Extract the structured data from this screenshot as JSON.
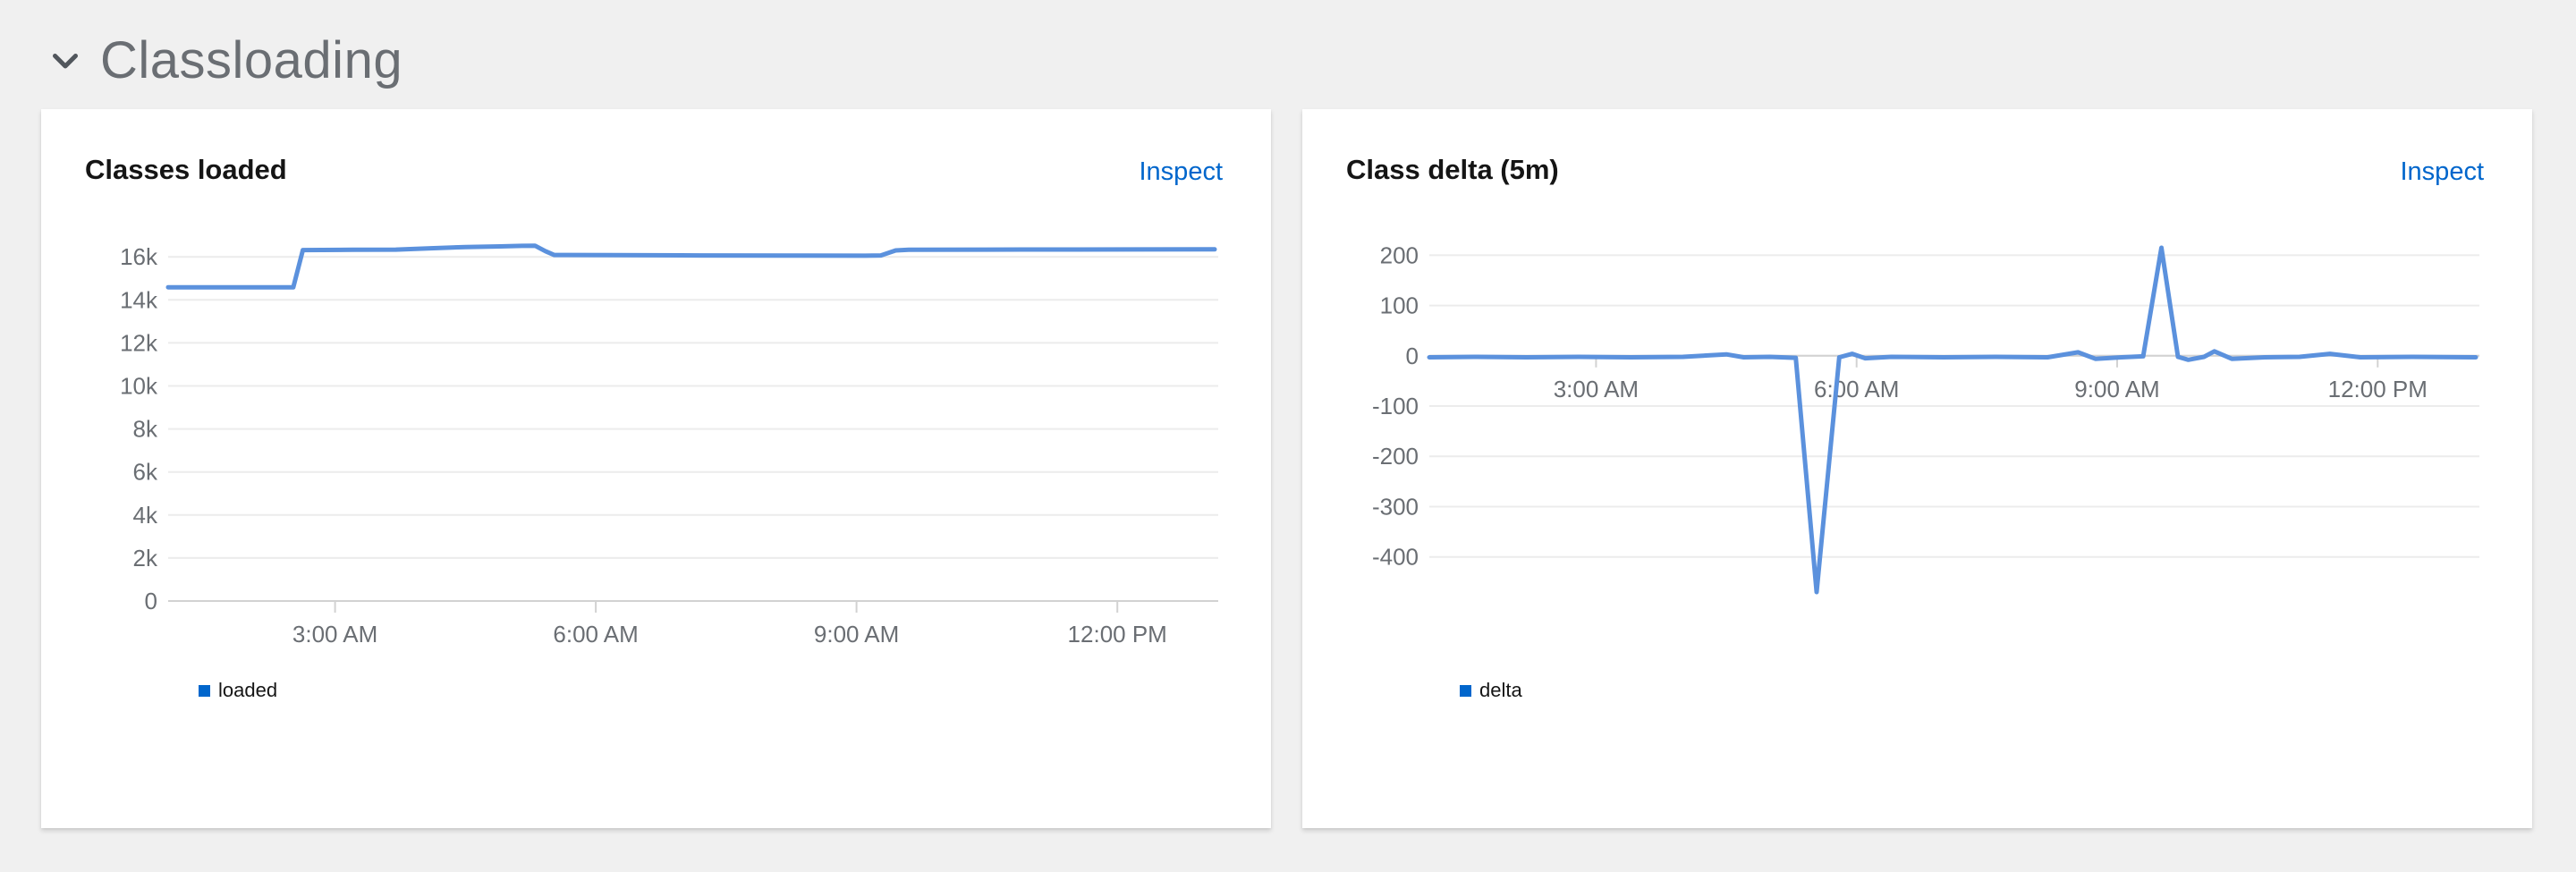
{
  "section": {
    "title": "Classloading",
    "expanded": true
  },
  "panels": [
    {
      "title": "Classes loaded",
      "inspect_label": "Inspect",
      "legend": [
        {
          "label": "loaded",
          "color": "#0066cc"
        }
      ]
    },
    {
      "title": "Class delta (5m)",
      "inspect_label": "Inspect",
      "legend": [
        {
          "label": "delta",
          "color": "#0066cc"
        }
      ]
    }
  ],
  "chart_data": [
    {
      "type": "line",
      "title": "Classes loaded",
      "xlabel": "",
      "ylabel": "",
      "grid": true,
      "legend_position": "bottom-left",
      "x_unit": "hours-since-midnight",
      "x_range_hours": [
        1.08,
        13.12
      ],
      "y_range": [
        0,
        17050
      ],
      "x_axis_at_value": 0,
      "x_ticks": [
        {
          "t": 3,
          "label": "3:00 AM"
        },
        {
          "t": 6,
          "label": "6:00 AM"
        },
        {
          "t": 9,
          "label": "9:00 AM"
        },
        {
          "t": 12,
          "label": "12:00 PM"
        }
      ],
      "y_ticks": [
        {
          "v": 0,
          "label": "0"
        },
        {
          "v": 2000,
          "label": "2k"
        },
        {
          "v": 4000,
          "label": "4k"
        },
        {
          "v": 6000,
          "label": "6k"
        },
        {
          "v": 8000,
          "label": "8k"
        },
        {
          "v": 10000,
          "label": "10k"
        },
        {
          "v": 12000,
          "label": "12k"
        },
        {
          "v": 14000,
          "label": "14k"
        },
        {
          "v": 16000,
          "label": "16k"
        }
      ],
      "series": [
        {
          "name": "loaded",
          "points": [
            [
              1.08,
              14590
            ],
            [
              2.0,
              14590
            ],
            [
              2.52,
              14590
            ],
            [
              2.63,
              16320
            ],
            [
              3.2,
              16330
            ],
            [
              3.7,
              16340
            ],
            [
              4.1,
              16400
            ],
            [
              4.5,
              16460
            ],
            [
              4.9,
              16490
            ],
            [
              5.15,
              16515
            ],
            [
              5.3,
              16520
            ],
            [
              5.42,
              16270
            ],
            [
              5.52,
              16090
            ],
            [
              6.2,
              16080
            ],
            [
              7.2,
              16070
            ],
            [
              8.2,
              16060
            ],
            [
              9.1,
              16055
            ],
            [
              9.28,
              16070
            ],
            [
              9.45,
              16300
            ],
            [
              9.6,
              16330
            ],
            [
              10.5,
              16340
            ],
            [
              11.5,
              16345
            ],
            [
              13.12,
              16350
            ]
          ]
        }
      ]
    },
    {
      "type": "line",
      "title": "Class delta (5m)",
      "xlabel": "",
      "ylabel": "",
      "grid": true,
      "legend_position": "bottom-left",
      "x_unit": "hours-since-midnight",
      "x_range_hours": [
        1.08,
        13.13
      ],
      "y_range": [
        -470,
        215
      ],
      "x_axis_at_value": 0,
      "x_ticks": [
        {
          "t": 3,
          "label": "3:00 AM"
        },
        {
          "t": 6,
          "label": "6:00 AM"
        },
        {
          "t": 9,
          "label": "9:00 AM"
        },
        {
          "t": 12,
          "label": "12:00 PM"
        }
      ],
      "y_ticks": [
        {
          "v": 200,
          "label": "200"
        },
        {
          "v": 100,
          "label": "100"
        },
        {
          "v": 0,
          "label": "0"
        },
        {
          "v": -100,
          "label": "-100"
        },
        {
          "v": -200,
          "label": "-200"
        },
        {
          "v": -300,
          "label": "-300"
        },
        {
          "v": -400,
          "label": "-400"
        }
      ],
      "series": [
        {
          "name": "delta",
          "points": [
            [
              1.08,
              -3
            ],
            [
              1.6,
              -2
            ],
            [
              2.2,
              -3
            ],
            [
              2.8,
              -2
            ],
            [
              3.4,
              -3
            ],
            [
              4.0,
              -2
            ],
            [
              4.5,
              3
            ],
            [
              4.7,
              -3
            ],
            [
              5.0,
              -2
            ],
            [
              5.3,
              -4
            ],
            [
              5.54,
              -470
            ],
            [
              5.8,
              -3
            ],
            [
              5.95,
              4
            ],
            [
              6.1,
              -5
            ],
            [
              6.4,
              -2
            ],
            [
              7.0,
              -3
            ],
            [
              7.6,
              -2
            ],
            [
              8.2,
              -3
            ],
            [
              8.55,
              7
            ],
            [
              8.75,
              -6
            ],
            [
              9.05,
              -3
            ],
            [
              9.3,
              -1
            ],
            [
              9.51,
              215
            ],
            [
              9.7,
              -2
            ],
            [
              9.82,
              -8
            ],
            [
              10.0,
              -2
            ],
            [
              10.12,
              9
            ],
            [
              10.32,
              -6
            ],
            [
              10.7,
              -3
            ],
            [
              11.1,
              -2
            ],
            [
              11.45,
              4
            ],
            [
              11.8,
              -3
            ],
            [
              12.4,
              -2
            ],
            [
              13.13,
              -3
            ]
          ]
        }
      ]
    }
  ],
  "colors": {
    "page_background": "#f0f0f0",
    "card_background": "#ffffff",
    "section_title": "#6a6e73",
    "chevron": "#51565c",
    "card_title": "#151515",
    "link": "#0066cc",
    "series_line": "#5b91dd",
    "legend_swatch": "#0066cc",
    "gridline": "#ececec",
    "axis_line": "#d2d2d2",
    "tick_label": "#6a6e73"
  }
}
